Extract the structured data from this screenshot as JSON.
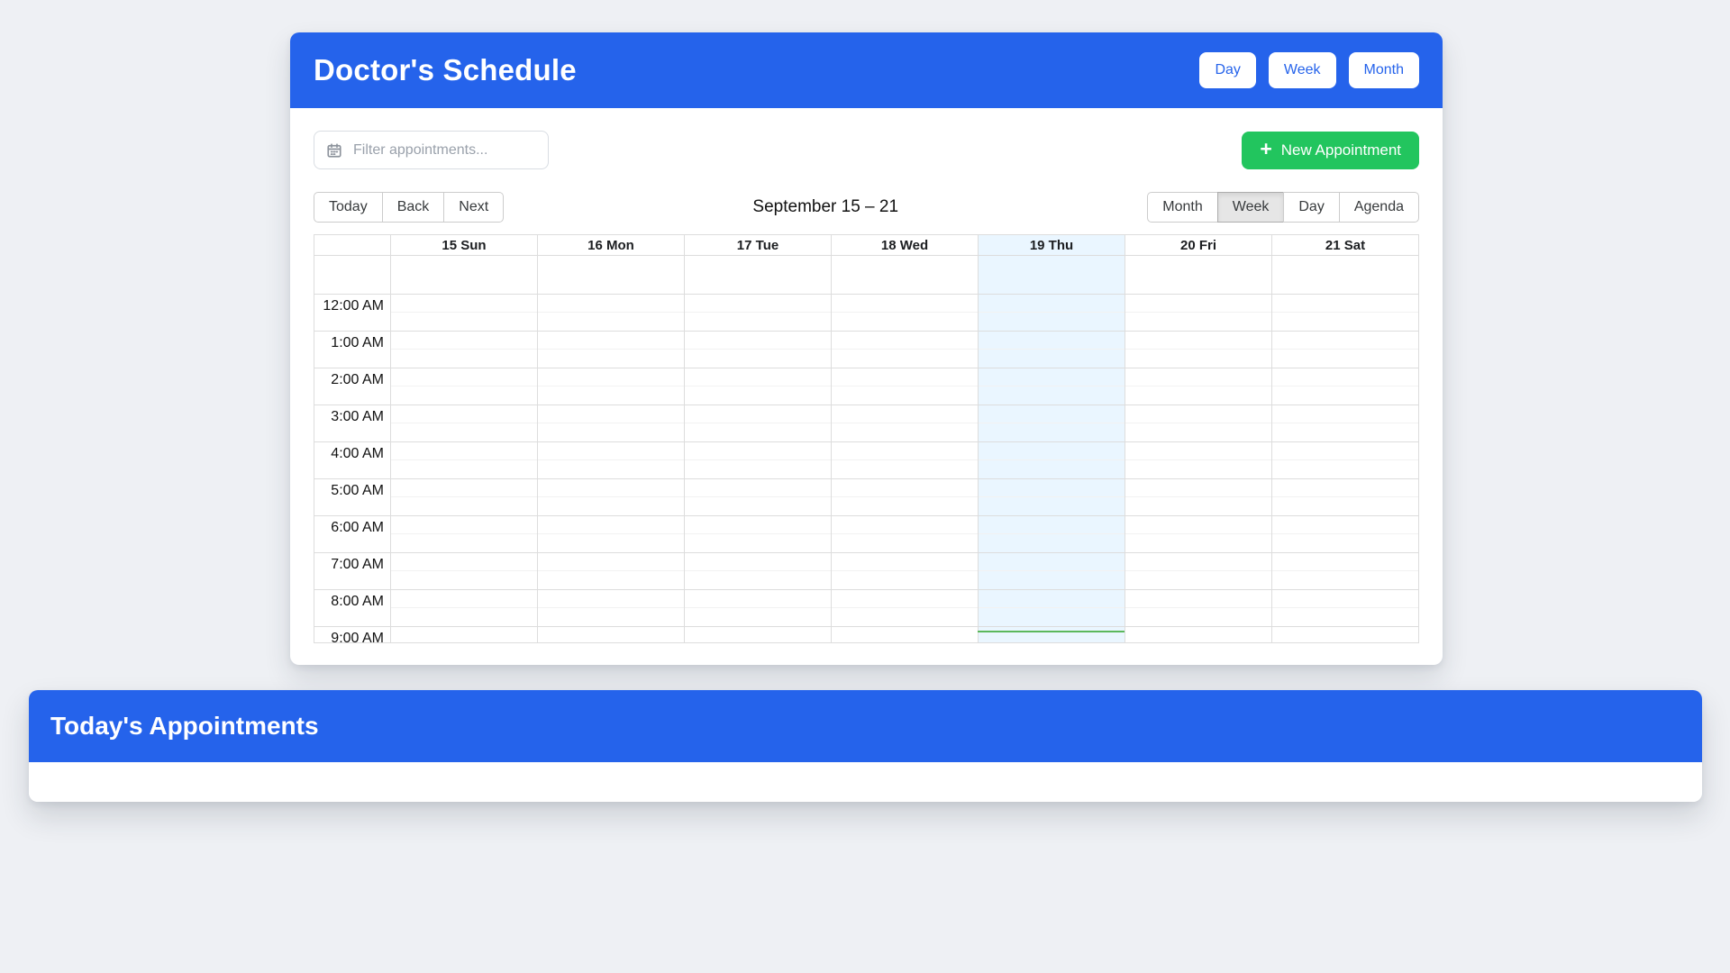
{
  "colors": {
    "primary_blue": "#2563eb",
    "accent_green": "#22c55e",
    "today_highlight": "#eaf6ff",
    "current_time_line": "#5cb85c",
    "active_view_bg": "#e6e6e6"
  },
  "scheduler": {
    "title": "Doctor's Schedule",
    "header_view_buttons": [
      {
        "label": "Day"
      },
      {
        "label": "Week"
      },
      {
        "label": "Month"
      }
    ],
    "filter": {
      "placeholder": "Filter appointments...",
      "value": ""
    },
    "new_appointment": {
      "icon": "+",
      "label": "New Appointment"
    },
    "toolbar": {
      "nav_buttons": [
        {
          "label": "Today"
        },
        {
          "label": "Back"
        },
        {
          "label": "Next"
        }
      ],
      "date_range_label": "September 15 – 21",
      "view_buttons": [
        {
          "label": "Month",
          "active": false
        },
        {
          "label": "Week",
          "active": true
        },
        {
          "label": "Day",
          "active": false
        },
        {
          "label": "Agenda",
          "active": false
        }
      ]
    },
    "week_grid": {
      "day_headers": [
        {
          "label": "15 Sun",
          "today": false
        },
        {
          "label": "16 Mon",
          "today": false
        },
        {
          "label": "17 Tue",
          "today": false
        },
        {
          "label": "18 Wed",
          "today": false
        },
        {
          "label": "19 Thu",
          "today": true
        },
        {
          "label": "20 Fri",
          "today": false
        },
        {
          "label": "21 Sat",
          "today": false
        }
      ],
      "time_labels": [
        "12:00 AM",
        "1:00 AM",
        "2:00 AM",
        "3:00 AM",
        "4:00 AM",
        "5:00 AM",
        "6:00 AM",
        "7:00 AM",
        "8:00 AM",
        "9:00 AM"
      ],
      "today_column_label": "19 Thu"
    }
  },
  "appointments_panel": {
    "title": "Today's Appointments"
  }
}
